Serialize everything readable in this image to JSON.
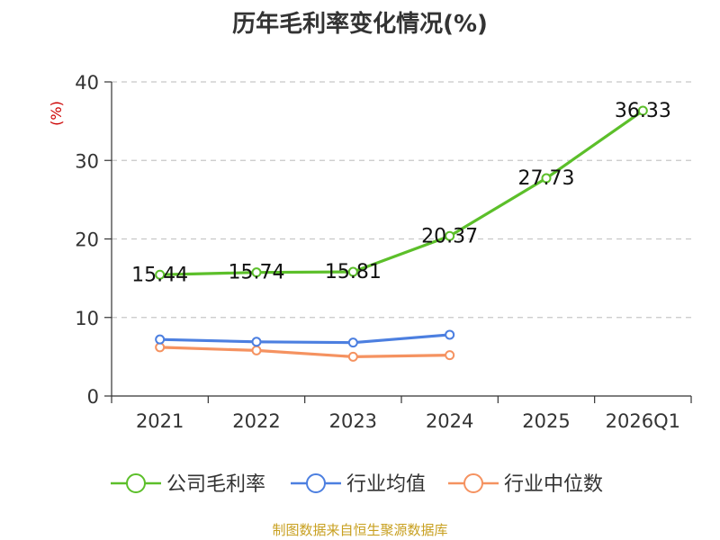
{
  "chart_data": {
    "type": "line",
    "title": "历年毛利率变化情况(%)",
    "ylabel": "(%)",
    "categories": [
      "2021",
      "2022",
      "2023",
      "2024",
      "2025",
      "2026Q1"
    ],
    "ylim": [
      0,
      40
    ],
    "yticks": [
      0,
      10,
      20,
      30,
      40
    ],
    "grid": true,
    "legend_position": "bottom",
    "series": [
      {
        "name": "公司毛利率",
        "color": "#5cbf2a",
        "values": [
          15.44,
          15.74,
          15.81,
          20.37,
          27.73,
          36.33
        ],
        "data_labels": [
          "15.44",
          "15.74",
          "15.81",
          "20.37",
          "27.73",
          "36.33"
        ]
      },
      {
        "name": "行业均值",
        "color": "#4c7fe0",
        "values": [
          7.2,
          6.9,
          6.8,
          7.8,
          null,
          null
        ]
      },
      {
        "name": "行业中位数",
        "color": "#f59260",
        "values": [
          6.2,
          5.8,
          5.0,
          5.2,
          null,
          null
        ]
      }
    ]
  },
  "source": {
    "text": "制图数据来自恒生聚源数据库",
    "color": "#c8a020"
  },
  "ylabel_color": "#cc0000"
}
